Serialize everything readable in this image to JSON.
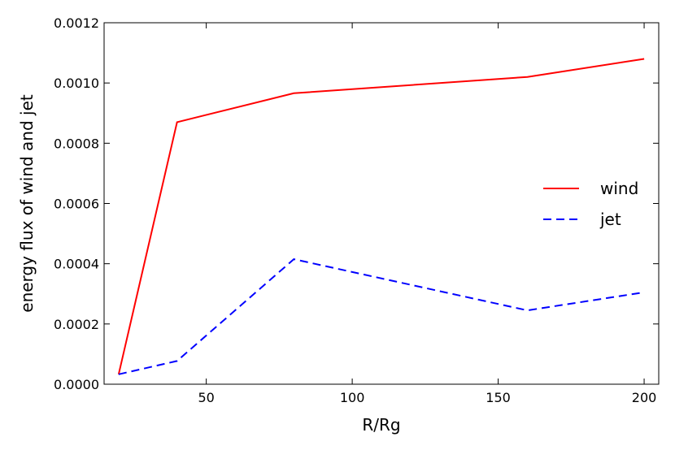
{
  "chart_data": {
    "type": "line",
    "title": "",
    "xlabel": "R/Rg",
    "ylabel": "energy flux of wind and jet",
    "xlim": [
      15,
      205
    ],
    "ylim": [
      0.0,
      0.0012
    ],
    "x_ticks": [
      50,
      100,
      150,
      200
    ],
    "x_tick_labels": [
      "50",
      "100",
      "150",
      "200"
    ],
    "y_ticks": [
      0.0,
      0.0002,
      0.0004,
      0.0006,
      0.0008,
      0.001,
      0.0012
    ],
    "y_tick_labels": [
      "0.0000",
      "0.0002",
      "0.0004",
      "0.0006",
      "0.0008",
      "0.0010",
      "0.0012"
    ],
    "grid": false,
    "legend_position": "center-right",
    "series": [
      {
        "name": "wind",
        "color": "#ff0000",
        "style": "solid",
        "x": [
          20,
          40,
          80,
          160,
          200
        ],
        "y": [
          3.3e-05,
          0.00087,
          0.000966,
          0.00102,
          0.00108
        ]
      },
      {
        "name": "jet",
        "color": "#0000ff",
        "style": "dashed",
        "x": [
          20,
          40,
          80,
          160,
          200
        ],
        "y": [
          3.3e-05,
          7.7e-05,
          0.000415,
          0.000245,
          0.000305
        ]
      }
    ]
  }
}
